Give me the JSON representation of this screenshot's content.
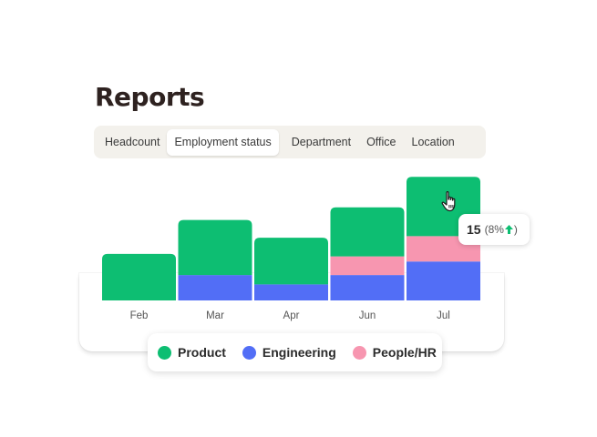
{
  "page_title": "Reports",
  "tabs": [
    {
      "label": "Headcount",
      "active": false
    },
    {
      "label": "Employment status",
      "active": true
    },
    {
      "label": "Department",
      "active": false
    },
    {
      "label": "Office",
      "active": false
    },
    {
      "label": "Location",
      "active": false
    }
  ],
  "colors": {
    "product": "#0dbe72",
    "engineering": "#526ef6",
    "people_hr": "#f796b0",
    "increase_arrow": "#0dbe72"
  },
  "tooltip": {
    "value": "15",
    "change": "(8%",
    "change_close": ")",
    "icon": "arrow-up-icon"
  },
  "cursor_icon": "hand-pointer-icon",
  "legend": [
    {
      "label": "Product",
      "color": "#0dbe72"
    },
    {
      "label": "Engineering",
      "color": "#526ef6"
    },
    {
      "label": "People/HR",
      "color": "#f796b0"
    }
  ],
  "chart_data": {
    "type": "bar",
    "stacked": true,
    "categories": [
      "Feb",
      "Mar",
      "Apr",
      "Jun",
      "Jul"
    ],
    "series": [
      {
        "name": "Engineering",
        "color": "#526ef6",
        "values": [
          0,
          3.0,
          1.9,
          3.0,
          4.6
        ]
      },
      {
        "name": "People/HR",
        "color": "#f796b0",
        "values": [
          0,
          0,
          0,
          2.2,
          3.0
        ]
      },
      {
        "name": "Product",
        "color": "#0dbe72",
        "values": [
          5.5,
          6.5,
          5.5,
          5.8,
          7.0
        ]
      }
    ],
    "ylim": [
      0,
      15
    ]
  }
}
